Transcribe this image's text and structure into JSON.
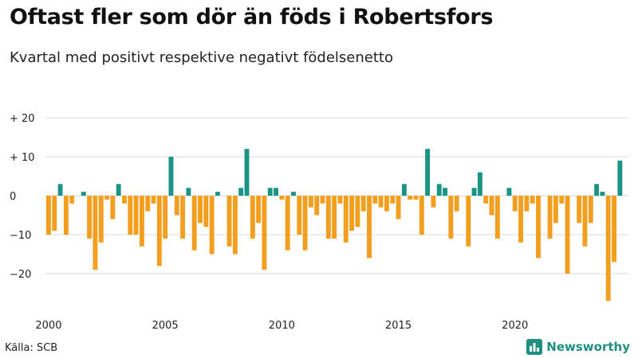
{
  "title": "Oftast fler som dör än föds i Robertsfors",
  "subtitle": "Kvartal med positivt respektive negativt födelsenetto",
  "source": "Källa: SCB",
  "brand": "Newsworthy",
  "colors": {
    "positive": "#1a9484",
    "negative": "#f29e1f",
    "grid": "#d9d9d9",
    "brand": "#1f8f80"
  },
  "chart_data": {
    "type": "bar",
    "ylim": [
      -30,
      20
    ],
    "yticks": [
      20,
      10,
      0,
      -10,
      -20
    ],
    "ytick_labels": [
      "+ 20",
      "+ 10",
      "0",
      "−10",
      "−20"
    ],
    "xticks": [
      "2000",
      "2005",
      "2010",
      "2015",
      "2020"
    ],
    "start_year": 2000,
    "values": [
      -10,
      -9,
      3,
      -10,
      -2,
      0,
      1,
      -11,
      -19,
      -12,
      -1,
      -6,
      3,
      -2,
      -10,
      -10,
      -13,
      -4,
      -2,
      -18,
      -11,
      10,
      -5,
      -11,
      2,
      -14,
      -7,
      -8,
      -15,
      1,
      0,
      -13,
      -15,
      2,
      12,
      -11,
      -7,
      -19,
      2,
      2,
      -1,
      -14,
      1,
      -10,
      -14,
      -3,
      -5,
      -2,
      -11,
      -11,
      -2,
      -12,
      -9,
      -8,
      -4,
      -16,
      -2,
      -3,
      -4,
      -2,
      -6,
      3,
      -1,
      -1,
      -10,
      12,
      -3,
      3,
      2,
      -11,
      -4,
      0,
      -13,
      2,
      6,
      -2,
      -5,
      -11,
      0,
      2,
      -4,
      -12,
      -4,
      -2,
      -16,
      0,
      -11,
      -7,
      -2,
      -20,
      0,
      -7,
      -13,
      -7,
      3,
      1,
      -27,
      -17,
      9
    ]
  }
}
